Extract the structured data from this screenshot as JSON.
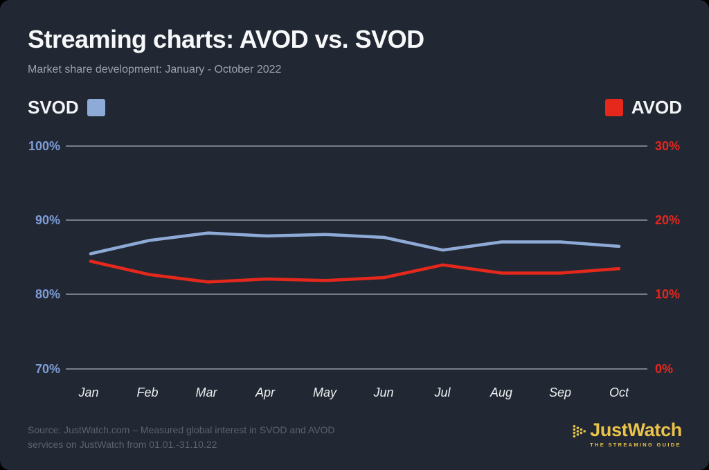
{
  "page": {
    "title": "Streaming charts: AVOD vs. SVOD",
    "subtitle": "Market share development: January - October 2022"
  },
  "legend": {
    "svod_label": "SVOD",
    "avod_label": "AVOD"
  },
  "colors": {
    "card_background": "#222833",
    "svod_blue": "#8eabd8",
    "avod_red": "#e6281c",
    "left_axis_label_blue": "#7d9cd6",
    "right_axis_label_red": "#e5271e",
    "gridline_gray": "#81868f",
    "logo_yellow": "#eac349"
  },
  "chart_data": {
    "type": "line",
    "title": "Streaming charts: AVOD vs. SVOD",
    "subtitle": "Market share development: January - October 2022",
    "categories": [
      "Jan",
      "Feb",
      "Mar",
      "Apr",
      "May",
      "Jun",
      "Jul",
      "Aug",
      "Sep",
      "Oct"
    ],
    "series": [
      {
        "name": "SVOD",
        "axis": "left",
        "color": "#8eabd8",
        "values": [
          85.5,
          87.3,
          88.3,
          87.9,
          88.1,
          87.7,
          86.0,
          87.1,
          87.1,
          86.5
        ]
      },
      {
        "name": "AVOD",
        "axis": "right",
        "color": "#e6281c",
        "values": [
          14.5,
          12.7,
          11.7,
          12.1,
          11.9,
          12.3,
          14.0,
          12.9,
          12.9,
          13.5
        ]
      }
    ],
    "left_axis": {
      "range": [
        70,
        100
      ],
      "ticks": [
        "100%",
        "90%",
        "80%",
        "70%"
      ]
    },
    "right_axis": {
      "range": [
        0,
        30
      ],
      "ticks": [
        "30%",
        "20%",
        "10%",
        "0%"
      ]
    },
    "grid": "horizontal gridlines only",
    "legend_position": "top: SVOD left, AVOD right"
  },
  "footer": {
    "source_line1": "Source: JustWatch.com – Measured global interest in SVOD and  AVOD",
    "source_line2": "services on JustWatch from 01.01.-31.10.22",
    "logo_text": "JustWatch",
    "logo_tagline": "THE STREAMING GUIDE"
  }
}
